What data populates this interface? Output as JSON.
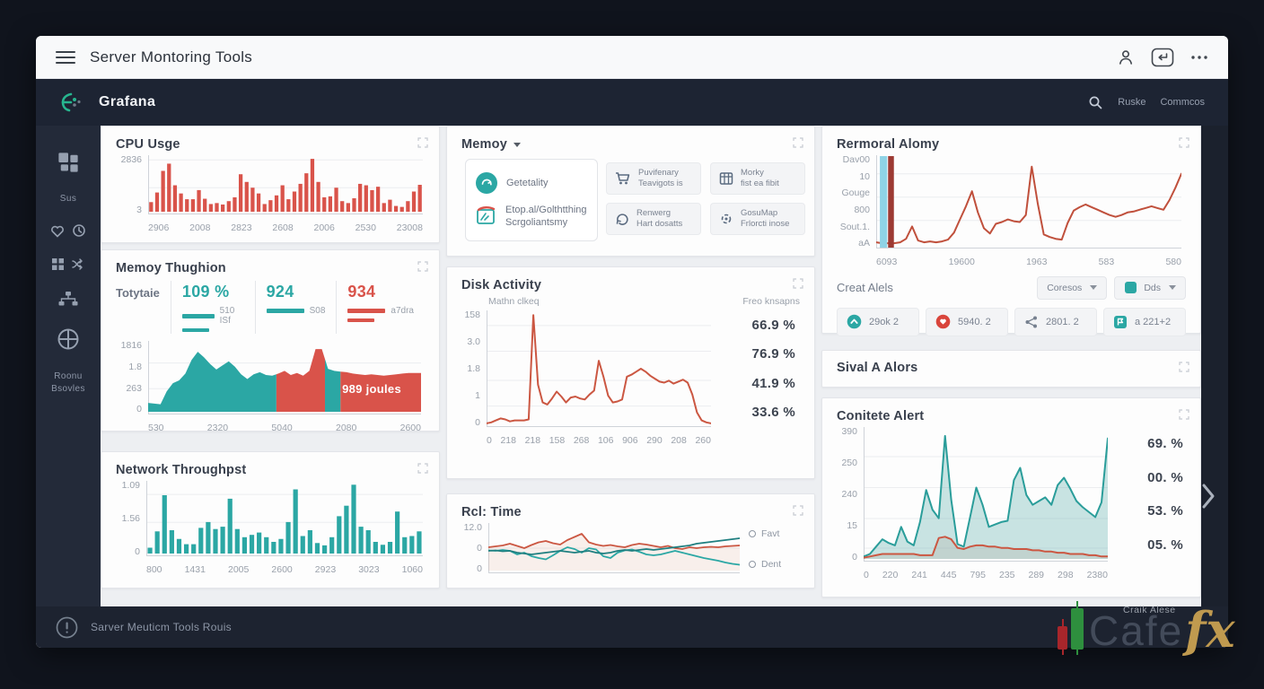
{
  "topbar": {
    "title": "Server Montoring Tools"
  },
  "header": {
    "brand": "Grafana",
    "links": [
      "Ruske",
      "Commcos"
    ]
  },
  "sidebar": {
    "top_label": "Sus",
    "bottom_label1": "Roonu",
    "bottom_label2": "Bsovles"
  },
  "footer": {
    "text": "Sarver Meuticm Tools Rouis"
  },
  "watermark": {
    "small": "Craik Alese",
    "name": "Cafe",
    "suffix": "fx"
  },
  "icons": {
    "menu": "hamburger",
    "user": "person",
    "launch": "enter-key",
    "more": "ellipsis",
    "search": "magnifier",
    "expand": "corner-brackets",
    "alert": "exclamation-circle",
    "next": "chevron-right"
  },
  "panels": {
    "cpu": {
      "title": "CPU Usge",
      "y_ticks": [
        "2836",
        "3"
      ],
      "x_ticks": [
        "2906",
        "2008",
        "2823",
        "2608",
        "2006",
        "2530",
        "23008"
      ],
      "chart": {
        "type": "bar",
        "color": "#d9534a",
        "max": 112,
        "grid": [
          0.08,
          0.55
        ],
        "values": [
          20,
          40,
          85,
          100,
          55,
          38,
          26,
          26,
          45,
          27,
          16,
          18,
          15,
          22,
          30,
          78,
          62,
          50,
          38,
          16,
          24,
          34,
          55,
          26,
          42,
          58,
          80,
          110,
          62,
          30,
          32,
          50,
          22,
          18,
          28,
          58,
          55,
          45,
          52,
          18,
          25,
          12,
          10,
          22,
          42,
          56
        ]
      }
    },
    "memory_menu": {
      "title": "Memoy",
      "items": [
        {
          "label": "Getetality"
        },
        {
          "label": "Etop.al/Golthtthing",
          "label2": "Scrgoliantsmy"
        }
      ],
      "buttons": [
        {
          "line1": "Puvifenary",
          "line2": "Teavigots is"
        },
        {
          "line1": "Morky",
          "line2": "fist ea fibit"
        },
        {
          "line1": "Renwerg",
          "line2": "Hart dosatts"
        },
        {
          "line1": "GosuMap",
          "line2": "Frlorcti inose"
        }
      ]
    },
    "memory_throughput": {
      "title": "Memoy Thughion",
      "stat_label": "Totytaie",
      "stats": [
        {
          "value": "109 %",
          "sub": "510 ISf"
        },
        {
          "value": "924",
          "sub": "S08"
        },
        {
          "value": "934",
          "sub": "a7dra"
        }
      ],
      "annotation": "989 joules",
      "y_ticks": [
        "1816",
        "1.8",
        "263",
        "0"
      ],
      "x_ticks": [
        "530",
        "2320",
        "5040",
        "2080",
        "2600"
      ],
      "chart": {
        "type": "area",
        "max": 100,
        "grid": [
          0.3,
          0.65
        ],
        "values": [
          13,
          12,
          11,
          30,
          42,
          46,
          56,
          76,
          88,
          80,
          70,
          62,
          68,
          74,
          66,
          55,
          48,
          55,
          58,
          54,
          53,
          56,
          60,
          54,
          57,
          53,
          60,
          92,
          92,
          63,
          60,
          59,
          58,
          56,
          55,
          54,
          55,
          54,
          53,
          54,
          55,
          56,
          57,
          57,
          57
        ],
        "segments": [
          {
            "from": 0,
            "to": 47,
            "color": "#2ba7a4"
          },
          {
            "from": 47,
            "to": 64.8,
            "color": "#d9534a"
          },
          {
            "from": 64.8,
            "to": 70.5,
            "color": "#2ba7a4"
          },
          {
            "from": 70.5,
            "to": 100,
            "color": "#d9534a"
          }
        ]
      }
    },
    "network": {
      "title": "Network Throughpst",
      "y_ticks": [
        "1.09",
        "1.56",
        "0"
      ],
      "x_ticks": [
        "800",
        "1431",
        "2005",
        "2600",
        "2923",
        "3023",
        "1060"
      ],
      "chart": {
        "type": "bar",
        "color": "#2ba7a4",
        "max": 120,
        "grid": [
          0.18,
          0.55
        ],
        "values": [
          10,
          38,
          100,
          40,
          25,
          16,
          16,
          44,
          54,
          42,
          46,
          94,
          42,
          28,
          32,
          36,
          28,
          20,
          25,
          54,
          110,
          30,
          40,
          18,
          14,
          28,
          64,
          82,
          118,
          46,
          40,
          20,
          15,
          20,
          72,
          28,
          30,
          38
        ]
      }
    },
    "disk": {
      "title": "Disk Activity",
      "left_label": "Mathn clkeq",
      "right_label": "Freo knsapns",
      "y_ticks": [
        "158",
        "3.0",
        "1.8",
        "1",
        "0"
      ],
      "x_ticks": [
        "0",
        "218",
        "218",
        "158",
        "268",
        "106",
        "906",
        "290",
        "208",
        "260"
      ],
      "side_values": [
        "66.9 %",
        "76.9 %",
        "41.9 %",
        "33.6 %"
      ],
      "chart": {
        "type": "lines",
        "max": 112,
        "grid": [
          0.13,
          0.35,
          0.6,
          0.82
        ],
        "series": [
          {
            "color": "#cb5742",
            "width": 2,
            "values": [
              1,
              2,
              4,
              6,
              5,
              3,
              4,
              4,
              4,
              5,
              110,
              40,
              22,
              20,
              26,
              33,
              28,
              22,
              27,
              28,
              26,
              25,
              30,
              34,
              64,
              48,
              29,
              22,
              23,
              25,
              48,
              50,
              53,
              56,
              53,
              49,
              46,
              43,
              42,
              44,
              41,
              43,
              45,
              42,
              30,
              12,
              4,
              2,
              1
            ]
          }
        ]
      }
    },
    "realtime": {
      "title": "Rcl: Time",
      "y_ticks": [
        "12.0",
        "0",
        "0"
      ],
      "legend": [
        "Favt",
        "Dent"
      ],
      "chart": {
        "type": "lines",
        "max": 100,
        "grid": [
          0.5
        ],
        "series": [
          {
            "color": "#cb5742",
            "width": 1.8,
            "fill": "rgba(210,140,110,0.12)",
            "values": [
              52,
              54,
              56,
              60,
              55,
              50,
              57,
              63,
              66,
              61,
              58,
              68,
              75,
              82,
              63,
              58,
              55,
              57,
              54,
              52,
              57,
              60,
              58,
              55,
              52,
              55,
              50,
              48,
              52,
              50,
              52,
              53,
              52,
              54,
              55,
              56
            ]
          },
          {
            "color": "#2ba7a4",
            "width": 1.8,
            "values": [
              45,
              44,
              46,
              44,
              36,
              40,
              32,
              28,
              25,
              34,
              44,
              52,
              48,
              40,
              50,
              47,
              32,
              28,
              40,
              45,
              47,
              42,
              36,
              34,
              36,
              40,
              44,
              40,
              36,
              32,
              28,
              25,
              22,
              18,
              15,
              13
            ]
          },
          {
            "color": "#1f7f80",
            "width": 1.8,
            "values": [
              44,
              45,
              43,
              44,
              40,
              38,
              36,
              38,
              40,
              42,
              44,
              42,
              40,
              42,
              44,
              40,
              38,
              40,
              44,
              46,
              44,
              46,
              48,
              46,
              48,
              50,
              52,
              54,
              56,
              60,
              62,
              64,
              66,
              68,
              70,
              72
            ]
          }
        ]
      }
    },
    "removal": {
      "title": "Rermoral Alomy",
      "y_ticks": [
        "Dav00",
        "10",
        "Gouge",
        "800",
        "Sout.1.",
        "aA"
      ],
      "x_ticks": [
        "6093",
        "19600",
        "1963",
        "583",
        "580"
      ],
      "alerts_label": "Creat Alels",
      "dropdown1": "Coresos",
      "dropdown2": "Dds",
      "buttons": [
        "29ok 2",
        "5940. 2",
        "2801. 2",
        "a 221+2"
      ],
      "chart": {
        "type": "lines",
        "max": 100,
        "grid": [
          0.2,
          0.45,
          0.7
        ],
        "marks": [
          {
            "x": 1.2,
            "w": 2.4,
            "color": "#8fd3e6"
          },
          {
            "x": 3.9,
            "w": 1.9,
            "color": "#9c3a33"
          }
        ],
        "series": [
          {
            "color": "#c0503c",
            "width": 2,
            "values": [
              4,
              3,
              3,
              3,
              4,
              8,
              22,
              6,
              4,
              5,
              4,
              5,
              7,
              15,
              30,
              45,
              62,
              38,
              20,
              14,
              25,
              27,
              30,
              28,
              27,
              35,
              90,
              48,
              13,
              10,
              8,
              7,
              26,
              40,
              44,
              47,
              44,
              41,
              38,
              35,
              33,
              35,
              38,
              39,
              41,
              43,
              45,
              43,
              41,
              52,
              66,
              82
            ]
          }
        ]
      }
    },
    "rival": {
      "title": "Sival A Alors"
    },
    "contele": {
      "title": "Conitete Alert",
      "y_ticks": [
        "390",
        "250",
        "240",
        "15",
        "0"
      ],
      "x_ticks": [
        "0",
        "220",
        "241",
        "445",
        "795",
        "235",
        "289",
        "298",
        "2380"
      ],
      "side_values": [
        "69. %",
        "00. %",
        "53. %",
        "05. %"
      ],
      "chart": {
        "type": "lines",
        "max": 105,
        "grid": [
          0.22,
          0.45,
          0.68,
          0.9
        ],
        "series": [
          {
            "color": "#2a9d9a",
            "width": 2,
            "fill": "rgba(43,150,148,0.25)",
            "values": [
              2,
              4,
              10,
              16,
              13,
              11,
              26,
              14,
              11,
              30,
              56,
              40,
              33,
              100,
              48,
              12,
              10,
              34,
              58,
              44,
              26,
              28,
              30,
              31,
              64,
              74,
              52,
              44,
              47,
              50,
              44,
              60,
              66,
              57,
              47,
              42,
              38,
              34,
              46,
              98
            ]
          },
          {
            "color": "#cb5742",
            "width": 2,
            "fill": "rgba(160,140,120,0.18)",
            "values": [
              1,
              2,
              3,
              4,
              4,
              4,
              4,
              4,
              4,
              3,
              3,
              3,
              17,
              18,
              16,
              9,
              8,
              10,
              11,
              11,
              10,
              10,
              9,
              9,
              8,
              8,
              8,
              7,
              7,
              6,
              6,
              5,
              5,
              4,
              4,
              4,
              3,
              3,
              2,
              2
            ]
          }
        ]
      }
    }
  }
}
